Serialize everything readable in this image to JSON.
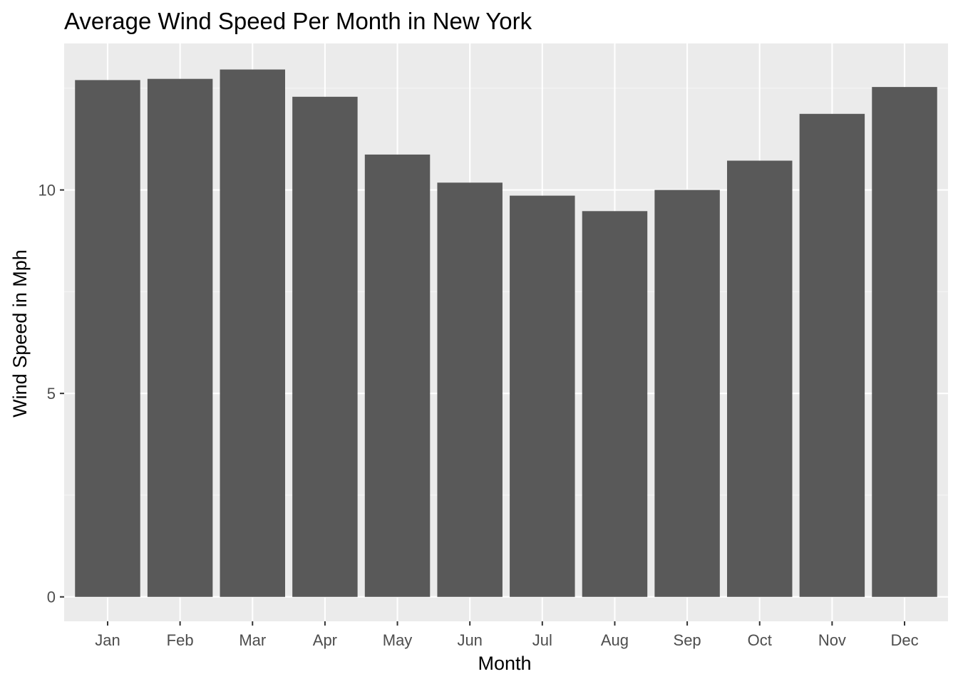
{
  "chart_data": {
    "type": "bar",
    "title": "Average Wind Speed Per Month in New York",
    "xlabel": "Month",
    "ylabel": "Wind Speed in Mph",
    "categories": [
      "Jan",
      "Feb",
      "Mar",
      "Apr",
      "May",
      "Jun",
      "Jul",
      "Aug",
      "Sep",
      "Oct",
      "Nov",
      "Dec"
    ],
    "values": [
      12.7,
      12.73,
      12.96,
      12.29,
      10.87,
      10.18,
      9.86,
      9.48,
      10.0,
      10.72,
      11.87,
      12.53
    ],
    "ylim": [
      -0.6,
      13.6
    ],
    "yticks": [
      0,
      5,
      10
    ],
    "ytick_labels": [
      "0",
      "5",
      "10"
    ],
    "grid": true,
    "legend": "none",
    "colors": {
      "panel_background": "#ebebeb",
      "grid_major": "#ffffff",
      "grid_minor": "#f5f5f5",
      "bar_fill": "#595959",
      "tick_color": "#333333",
      "tick_label_color": "#4d4d4d",
      "text_color": "#000000"
    }
  }
}
